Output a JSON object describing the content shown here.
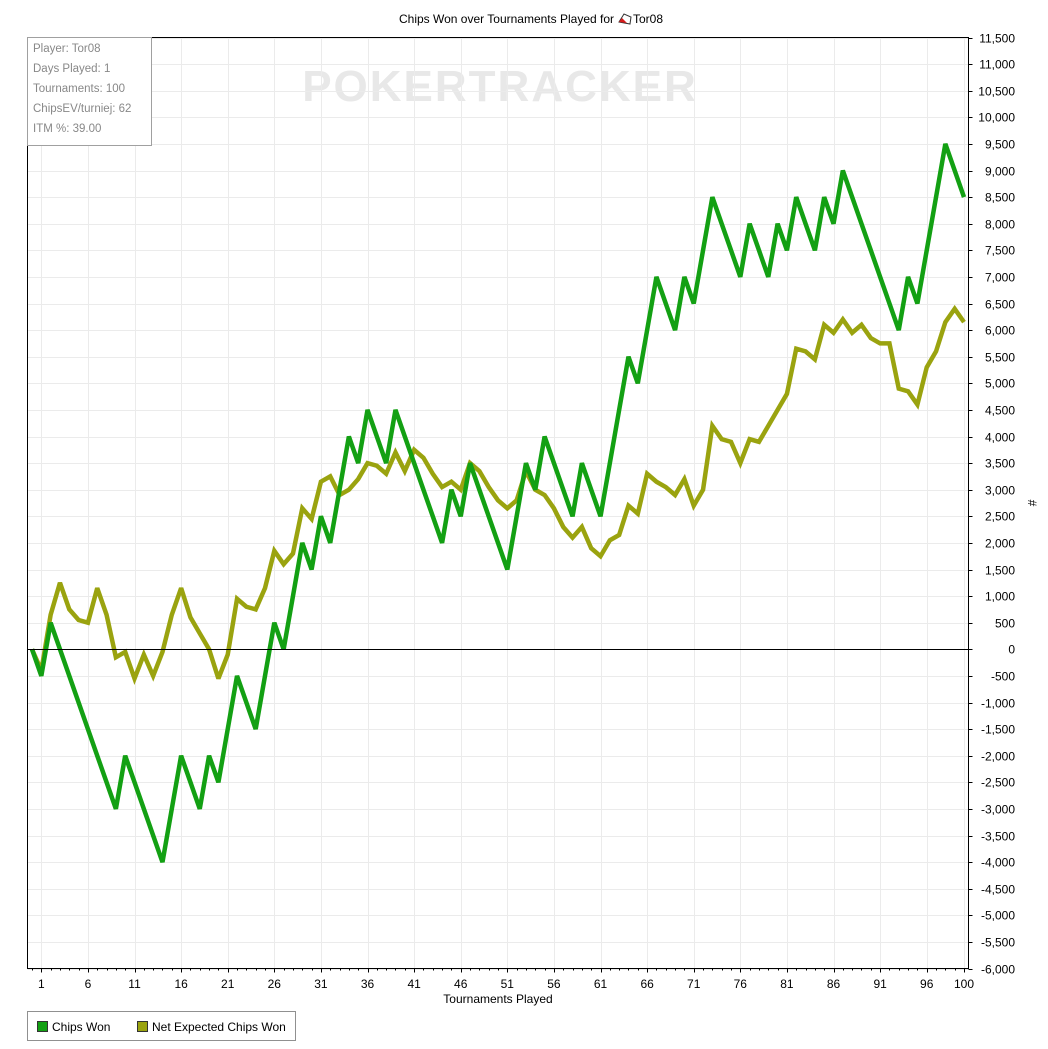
{
  "colors": {
    "chips_won": "#13a013",
    "net_expected": "#9aa30f",
    "grid": "#ebebeb",
    "zero_line": "#000000",
    "watermark": "#e8e8e8"
  },
  "watermark": {
    "text": "POKERTRACKER"
  },
  "stats": {
    "player": "Player: Tor08",
    "days": "Days Played: 1",
    "tournaments": "Tournaments: 100",
    "chipsev": "ChipsEV/turniej: 62",
    "itm": "ITM %: 39.00"
  },
  "legend": {
    "chips_won": "Chips Won",
    "net_expected": "Net Expected Chips Won"
  },
  "chart_data": {
    "type": "line",
    "title_prefix": "Chips Won over Tournaments Played for",
    "title_player": "Tor08",
    "xlabel": "Tournaments Played",
    "ylabel": "#",
    "xlim": [
      0,
      100
    ],
    "ylim": [
      -6000,
      11500
    ],
    "x_ticks": [
      "1",
      "6",
      "11",
      "16",
      "21",
      "26",
      "31",
      "36",
      "41",
      "46",
      "51",
      "56",
      "61",
      "66",
      "71",
      "76",
      "81",
      "86",
      "91",
      "96",
      "100"
    ],
    "x_tick_values": [
      1,
      6,
      11,
      16,
      21,
      26,
      31,
      36,
      41,
      46,
      51,
      56,
      61,
      66,
      71,
      76,
      81,
      86,
      91,
      96,
      100
    ],
    "y_ticks": [
      "11,500",
      "11,000",
      "10,500",
      "10,000",
      "9,500",
      "9,000",
      "8,500",
      "8,000",
      "7,500",
      "7,000",
      "6,500",
      "6,000",
      "5,500",
      "5,000",
      "4,500",
      "4,000",
      "3,500",
      "3,000",
      "2,500",
      "2,000",
      "1,500",
      "1,000",
      "500",
      "0",
      "-500",
      "-1,000",
      "-1,500",
      "-2,000",
      "-2,500",
      "-3,000",
      "-3,500",
      "-4,000",
      "-4,500",
      "-5,000",
      "-5,500",
      "-6,000"
    ],
    "y_tick_values": [
      11500,
      11000,
      10500,
      10000,
      9500,
      9000,
      8500,
      8000,
      7500,
      7000,
      6500,
      6000,
      5500,
      5000,
      4500,
      4000,
      3500,
      3000,
      2500,
      2000,
      1500,
      1000,
      500,
      0,
      -500,
      -1000,
      -1500,
      -2000,
      -2500,
      -3000,
      -3500,
      -4000,
      -4500,
      -5000,
      -5500,
      -6000
    ],
    "grid": true,
    "legend_position": "bottom-left",
    "series": [
      {
        "name": "Chips Won",
        "values": [
          0,
          -500,
          500,
          0,
          -500,
          -1000,
          -1500,
          -2000,
          -2500,
          -3000,
          -2000,
          -2500,
          -3000,
          -3500,
          -4000,
          -3000,
          -2000,
          -2500,
          -3000,
          -2000,
          -2500,
          -1500,
          -500,
          -1000,
          -1500,
          -500,
          500,
          0,
          1000,
          2000,
          1500,
          2500,
          2000,
          3000,
          4000,
          3500,
          4500,
          4000,
          3500,
          4500,
          4000,
          3500,
          3000,
          2500,
          2000,
          3000,
          2500,
          3500,
          3000,
          2500,
          2000,
          1500,
          2500,
          3500,
          3000,
          4000,
          3500,
          3000,
          2500,
          3500,
          3000,
          2500,
          3500,
          4500,
          5500,
          5000,
          6000,
          7000,
          6500,
          6000,
          7000,
          6500,
          7500,
          8500,
          8000,
          7500,
          7000,
          8000,
          7500,
          7000,
          8000,
          7500,
          8500,
          8000,
          7500,
          8500,
          8000,
          9000,
          8500,
          8000,
          7500,
          7000,
          6500,
          6000,
          7000,
          6500,
          7500,
          8500,
          9500,
          9000,
          8500
        ]
      },
      {
        "name": "Net Expected Chips Won",
        "values": [
          0,
          -400,
          650,
          1250,
          750,
          550,
          500,
          1150,
          650,
          -150,
          -50,
          -550,
          -100,
          -500,
          -50,
          650,
          1150,
          600,
          300,
          0,
          -550,
          -100,
          950,
          800,
          750,
          1150,
          1850,
          1600,
          1800,
          2650,
          2450,
          3150,
          3250,
          2900,
          3000,
          3200,
          3500,
          3450,
          3300,
          3700,
          3350,
          3750,
          3600,
          3300,
          3050,
          3150,
          3000,
          3500,
          3350,
          3050,
          2800,
          2650,
          2800,
          3350,
          3000,
          2900,
          2650,
          2300,
          2100,
          2300,
          1900,
          1750,
          2050,
          2150,
          2700,
          2550,
          3300,
          3150,
          3050,
          2900,
          3200,
          2700,
          3000,
          4200,
          3950,
          3900,
          3500,
          3950,
          3900,
          4200,
          4500,
          4800,
          5650,
          5600,
          5450,
          6100,
          5950,
          6200,
          5950,
          6100,
          5850,
          5750,
          5750,
          4900,
          4850,
          4600,
          5300,
          5600,
          6150,
          6400,
          6150
        ]
      }
    ]
  }
}
